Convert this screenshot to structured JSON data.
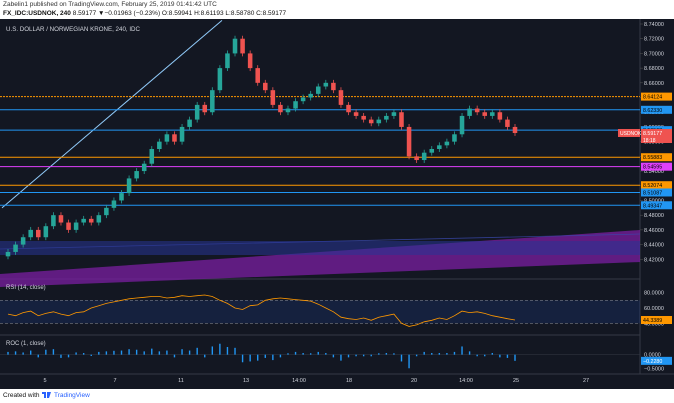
{
  "header": {
    "published": "Zabelin1 published on TradingView.com, February 25, 2019 01:41:42 UTC",
    "symbol": "FX_IDC:USDNOK, 240",
    "change": "8.59177 ▼−0.01963 (−0.23%)",
    "ohlc": "O:8.59941 H:8.61193 L:8.58780 C:8.59177"
  },
  "footer": {
    "created": "Created with",
    "brand": "TradingView"
  },
  "colors": {
    "bg": "#131722",
    "up": "#26a69a",
    "down": "#ef5350",
    "orange": "#ff9800",
    "blue": "#2196f3",
    "magenta": "#e040fb",
    "trend": "#90caf9",
    "rsi": "#ff9800",
    "roc": "#2196f3"
  },
  "chart_data": [
    {
      "type": "candlestick",
      "title": "U.S. DOLLAR / NORWEGIAN KRONE, 240, IDC",
      "ylim": [
        8.4,
        8.74
      ],
      "y_ticks": [
        "8.74000",
        "8.72000",
        "8.70000",
        "8.68000",
        "8.66000",
        "8.64000",
        "8.62000",
        "8.60000",
        "8.58000",
        "8.56000",
        "8.54000",
        "8.52000",
        "8.50000",
        "8.48000",
        "8.46000",
        "8.44000",
        "8.42000"
      ],
      "x_ticks": [
        "5",
        "7",
        "11",
        "13",
        "14:00",
        "18",
        "20",
        "14:00",
        "25",
        "27"
      ],
      "closes": [
        8.43,
        8.44,
        8.45,
        8.46,
        8.45,
        8.465,
        8.48,
        8.47,
        8.46,
        8.47,
        8.475,
        8.47,
        8.48,
        8.49,
        8.5,
        8.51,
        8.53,
        8.54,
        8.55,
        8.57,
        8.58,
        8.59,
        8.58,
        8.6,
        8.61,
        8.63,
        8.62,
        8.65,
        8.68,
        8.7,
        8.72,
        8.7,
        8.68,
        8.66,
        8.65,
        8.63,
        8.62,
        8.625,
        8.635,
        8.64,
        8.645,
        8.655,
        8.66,
        8.65,
        8.63,
        8.62,
        8.615,
        8.61,
        8.605,
        8.61,
        8.615,
        8.62,
        8.6,
        8.56,
        8.555,
        8.565,
        8.57,
        8.575,
        8.58,
        8.59,
        8.615,
        8.625,
        8.62,
        8.615,
        8.62,
        8.61,
        8.6,
        8.59177
      ],
      "levels": [
        {
          "value": 8.64124,
          "label": "8.64124",
          "color": "#ff9800"
        },
        {
          "value": 8.6233,
          "label": "8.62330",
          "color": "#2196f3"
        },
        {
          "value": 8.59563,
          "label": "8.59563",
          "color": "#2196f3"
        },
        {
          "value": 8.55883,
          "label": "8.55883",
          "color": "#ff9800"
        },
        {
          "value": 8.54595,
          "label": "8.54595",
          "color": "#e040fb"
        },
        {
          "value": 8.52074,
          "label": "8.52074",
          "color": "#ff9800"
        },
        {
          "value": 8.51087,
          "label": "8.51087",
          "color": "#2196f3"
        },
        {
          "value": 8.49347,
          "label": "8.49347",
          "color": "#2196f3"
        }
      ],
      "price_label": {
        "symbol": "USDNOK",
        "value": "8.59177",
        "time": "18:18"
      }
    },
    {
      "type": "line",
      "title": "RSI (14, close)",
      "ylim": [
        30,
        90
      ],
      "y_ticks": [
        "80.0000",
        "60.0000",
        "40.0000"
      ],
      "last_label": "44.3389",
      "bands": [
        70,
        40
      ],
      "values": [
        52,
        50,
        54,
        56,
        50,
        53,
        55,
        52,
        50,
        54,
        55,
        60,
        63,
        66,
        68,
        70,
        72,
        73,
        74,
        75,
        75,
        73,
        74,
        76,
        75,
        76,
        77,
        75,
        70,
        66,
        60,
        58,
        63,
        64,
        70,
        72,
        73,
        72,
        71,
        70,
        69,
        65,
        60,
        55,
        48,
        46,
        45,
        47,
        44,
        48,
        50,
        52,
        40,
        36,
        38,
        42,
        44,
        47,
        45,
        50,
        56,
        54,
        55,
        53,
        50,
        48,
        46,
        44.3389
      ]
    },
    {
      "type": "bar",
      "title": "ROC (1, close)",
      "ylim": [
        -0.6,
        0.5
      ],
      "y_ticks": [
        "0.0000",
        "−0.5000"
      ],
      "last_label": "−0.2280",
      "values": [
        0.1,
        0.12,
        0.08,
        0.15,
        -0.1,
        0.18,
        0.2,
        -0.12,
        -0.1,
        0.08,
        0.06,
        -0.05,
        0.1,
        0.12,
        0.14,
        0.15,
        0.2,
        0.18,
        0.12,
        0.22,
        0.12,
        0.15,
        -0.1,
        0.2,
        0.15,
        0.25,
        -0.1,
        0.3,
        0.4,
        0.28,
        0.25,
        -0.28,
        -0.25,
        -0.22,
        -0.12,
        -0.2,
        -0.1,
        0.05,
        0.1,
        0.06,
        0.05,
        0.1,
        0.06,
        -0.1,
        -0.22,
        -0.1,
        -0.06,
        -0.06,
        -0.06,
        0.05,
        0.06,
        0.05,
        -0.25,
        -0.5,
        -0.06,
        0.1,
        0.06,
        0.06,
        0.06,
        0.1,
        0.3,
        0.12,
        -0.06,
        -0.06,
        0.06,
        -0.1,
        -0.12,
        -0.228
      ]
    }
  ]
}
